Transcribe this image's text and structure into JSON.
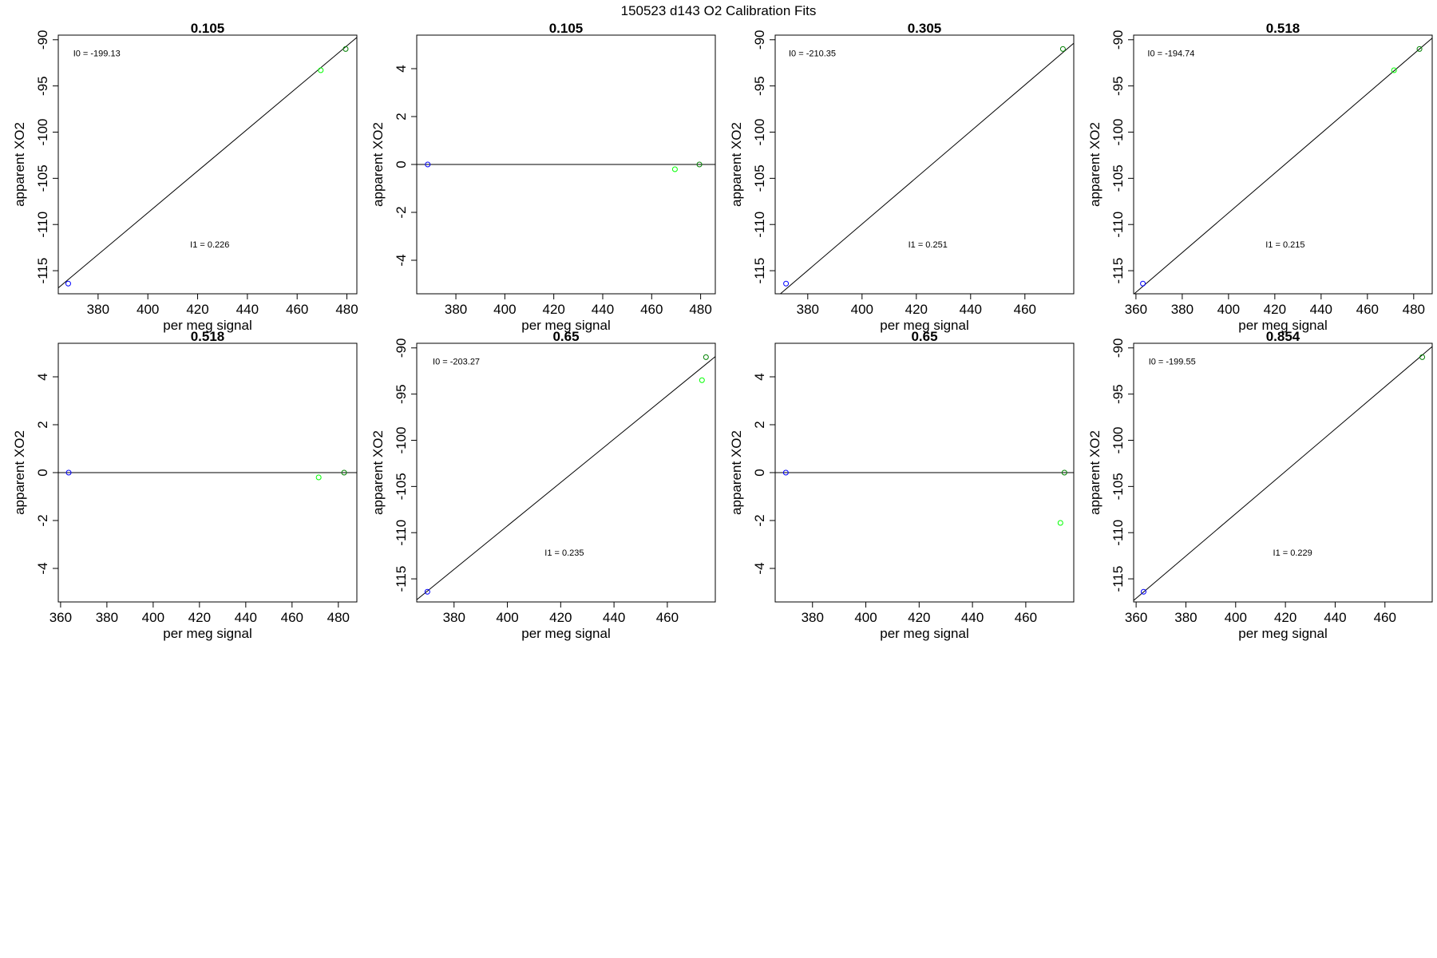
{
  "figure_title": "150523   d143   O2 Calibration Fits",
  "colors": {
    "fit_line": "#000000",
    "point_blue": "#0000ff",
    "point_light_green": "#00ff00",
    "point_dark_green": "#008000",
    "frame": "#000000"
  },
  "chart_data": [
    {
      "type": "scatter",
      "title": "0.105",
      "xlabel": "per meg signal",
      "ylabel": "apparent XO2",
      "xlim": [
        364,
        484
      ],
      "ylim": [
        -117.5,
        -89.5
      ],
      "x_ticks": [
        380,
        400,
        420,
        440,
        460,
        480
      ],
      "y_ticks": [
        -115,
        -110,
        -105,
        -100,
        -95,
        -90
      ],
      "points": [
        {
          "x": 368,
          "y": -116.4,
          "color": "#0000ff"
        },
        {
          "x": 469.5,
          "y": -93.3,
          "color": "#00ff00"
        },
        {
          "x": 479.5,
          "y": -91.0,
          "color": "#008000"
        }
      ],
      "fit_line": {
        "intercept": -199.13,
        "slope": 0.226
      },
      "annotations": [
        {
          "text": "I0 =  -199.13",
          "x": 370,
          "y": -91.8
        },
        {
          "text": "I1 =  0.226",
          "x": 417,
          "y": -112.5
        }
      ]
    },
    {
      "type": "scatter",
      "title": "0.105",
      "xlabel": "per meg signal",
      "ylabel": "apparent XO2",
      "xlim": [
        364,
        486
      ],
      "ylim": [
        -5.4,
        5.4
      ],
      "x_ticks": [
        380,
        400,
        420,
        440,
        460,
        480
      ],
      "y_ticks": [
        -4,
        -2,
        0,
        2,
        4
      ],
      "points": [
        {
          "x": 368.5,
          "y": 0,
          "color": "#0000ff"
        },
        {
          "x": 469.5,
          "y": -0.2,
          "color": "#00ff00"
        },
        {
          "x": 479.5,
          "y": 0,
          "color": "#008000"
        }
      ],
      "fit_line": {
        "intercept": 0,
        "slope": 0
      },
      "annotations": []
    },
    {
      "type": "scatter",
      "title": "0.305",
      "xlabel": "per meg signal",
      "ylabel": "apparent XO2",
      "xlim": [
        368,
        478
      ],
      "ylim": [
        -117.5,
        -89.5
      ],
      "x_ticks": [
        380,
        400,
        420,
        440,
        460
      ],
      "y_ticks": [
        -115,
        -110,
        -105,
        -100,
        -95,
        -90
      ],
      "points": [
        {
          "x": 372,
          "y": -116.4,
          "color": "#0000ff"
        },
        {
          "x": 474,
          "y": -91.0,
          "color": "#008000"
        }
      ],
      "fit_line": {
        "intercept": -210.35,
        "slope": 0.251
      },
      "annotations": [
        {
          "text": "I0 =  -210.35",
          "x": 373,
          "y": -91.8
        },
        {
          "text": "I1 =  0.251",
          "x": 417,
          "y": -112.5
        }
      ]
    },
    {
      "type": "scatter",
      "title": "0.518",
      "xlabel": "per meg signal",
      "ylabel": "apparent XO2",
      "xlim": [
        359,
        488
      ],
      "ylim": [
        -117.5,
        -89.5
      ],
      "x_ticks": [
        360,
        380,
        400,
        420,
        440,
        460,
        480
      ],
      "y_ticks": [
        -115,
        -110,
        -105,
        -100,
        -95,
        -90
      ],
      "points": [
        {
          "x": 363,
          "y": -116.4,
          "color": "#0000ff"
        },
        {
          "x": 471.5,
          "y": -93.3,
          "color": "#00ff00"
        },
        {
          "x": 482.5,
          "y": -91.0,
          "color": "#008000"
        }
      ],
      "fit_line": {
        "intercept": -194.74,
        "slope": 0.215
      },
      "annotations": [
        {
          "text": "I0 =  -194.74",
          "x": 365,
          "y": -91.8
        },
        {
          "text": "I1 =  0.215",
          "x": 416,
          "y": -112.5
        }
      ]
    },
    {
      "type": "scatter",
      "title": "0.518",
      "xlabel": "per meg signal",
      "ylabel": "apparent XO2",
      "xlim": [
        359,
        488
      ],
      "ylim": [
        -5.4,
        5.4
      ],
      "x_ticks": [
        360,
        380,
        400,
        420,
        440,
        460,
        480
      ],
      "y_ticks": [
        -4,
        -2,
        0,
        2,
        4
      ],
      "points": [
        {
          "x": 363.5,
          "y": 0,
          "color": "#0000ff"
        },
        {
          "x": 471.5,
          "y": -0.2,
          "color": "#00ff00"
        },
        {
          "x": 482.5,
          "y": 0,
          "color": "#008000"
        }
      ],
      "fit_line": {
        "intercept": 0,
        "slope": 0
      },
      "annotations": []
    },
    {
      "type": "scatter",
      "title": "0.65",
      "xlabel": "per meg signal",
      "ylabel": "apparent XO2",
      "xlim": [
        366,
        478
      ],
      "ylim": [
        -117.5,
        -89.5
      ],
      "x_ticks": [
        380,
        400,
        420,
        440,
        460
      ],
      "y_ticks": [
        -115,
        -110,
        -105,
        -100,
        -95,
        -90
      ],
      "points": [
        {
          "x": 370,
          "y": -116.4,
          "color": "#0000ff"
        },
        {
          "x": 473,
          "y": -93.5,
          "color": "#00ff00"
        },
        {
          "x": 474.5,
          "y": -91.0,
          "color": "#008000"
        }
      ],
      "fit_line": {
        "intercept": -203.27,
        "slope": 0.235
      },
      "annotations": [
        {
          "text": "I0 =  -203.27",
          "x": 372,
          "y": -91.8
        },
        {
          "text": "I1 =  0.235",
          "x": 414,
          "y": -112.5
        }
      ]
    },
    {
      "type": "scatter",
      "title": "0.65",
      "xlabel": "per meg signal",
      "ylabel": "apparent XO2",
      "xlim": [
        366,
        478
      ],
      "ylim": [
        -5.4,
        5.4
      ],
      "x_ticks": [
        380,
        400,
        420,
        440,
        460
      ],
      "y_ticks": [
        -4,
        -2,
        0,
        2,
        4
      ],
      "points": [
        {
          "x": 370,
          "y": 0,
          "color": "#0000ff"
        },
        {
          "x": 473,
          "y": -2.1,
          "color": "#00ff00"
        },
        {
          "x": 474.5,
          "y": 0,
          "color": "#008000"
        }
      ],
      "fit_line": {
        "intercept": 0,
        "slope": 0
      },
      "annotations": []
    },
    {
      "type": "scatter",
      "title": "0.854",
      "xlabel": "per meg signal",
      "ylabel": "apparent XO2",
      "xlim": [
        359,
        479
      ],
      "ylim": [
        -117.5,
        -89.5
      ],
      "x_ticks": [
        360,
        380,
        400,
        420,
        440,
        460
      ],
      "y_ticks": [
        -115,
        -110,
        -105,
        -100,
        -95,
        -90
      ],
      "points": [
        {
          "x": 363,
          "y": -116.4,
          "color": "#0000ff"
        },
        {
          "x": 475,
          "y": -91.0,
          "color": "#008000"
        }
      ],
      "fit_line": {
        "intercept": -199.55,
        "slope": 0.229
      },
      "annotations": [
        {
          "text": "I0 =  -199.55",
          "x": 365,
          "y": -91.8
        },
        {
          "text": "I1 =  0.229",
          "x": 415,
          "y": -112.5
        }
      ]
    }
  ]
}
